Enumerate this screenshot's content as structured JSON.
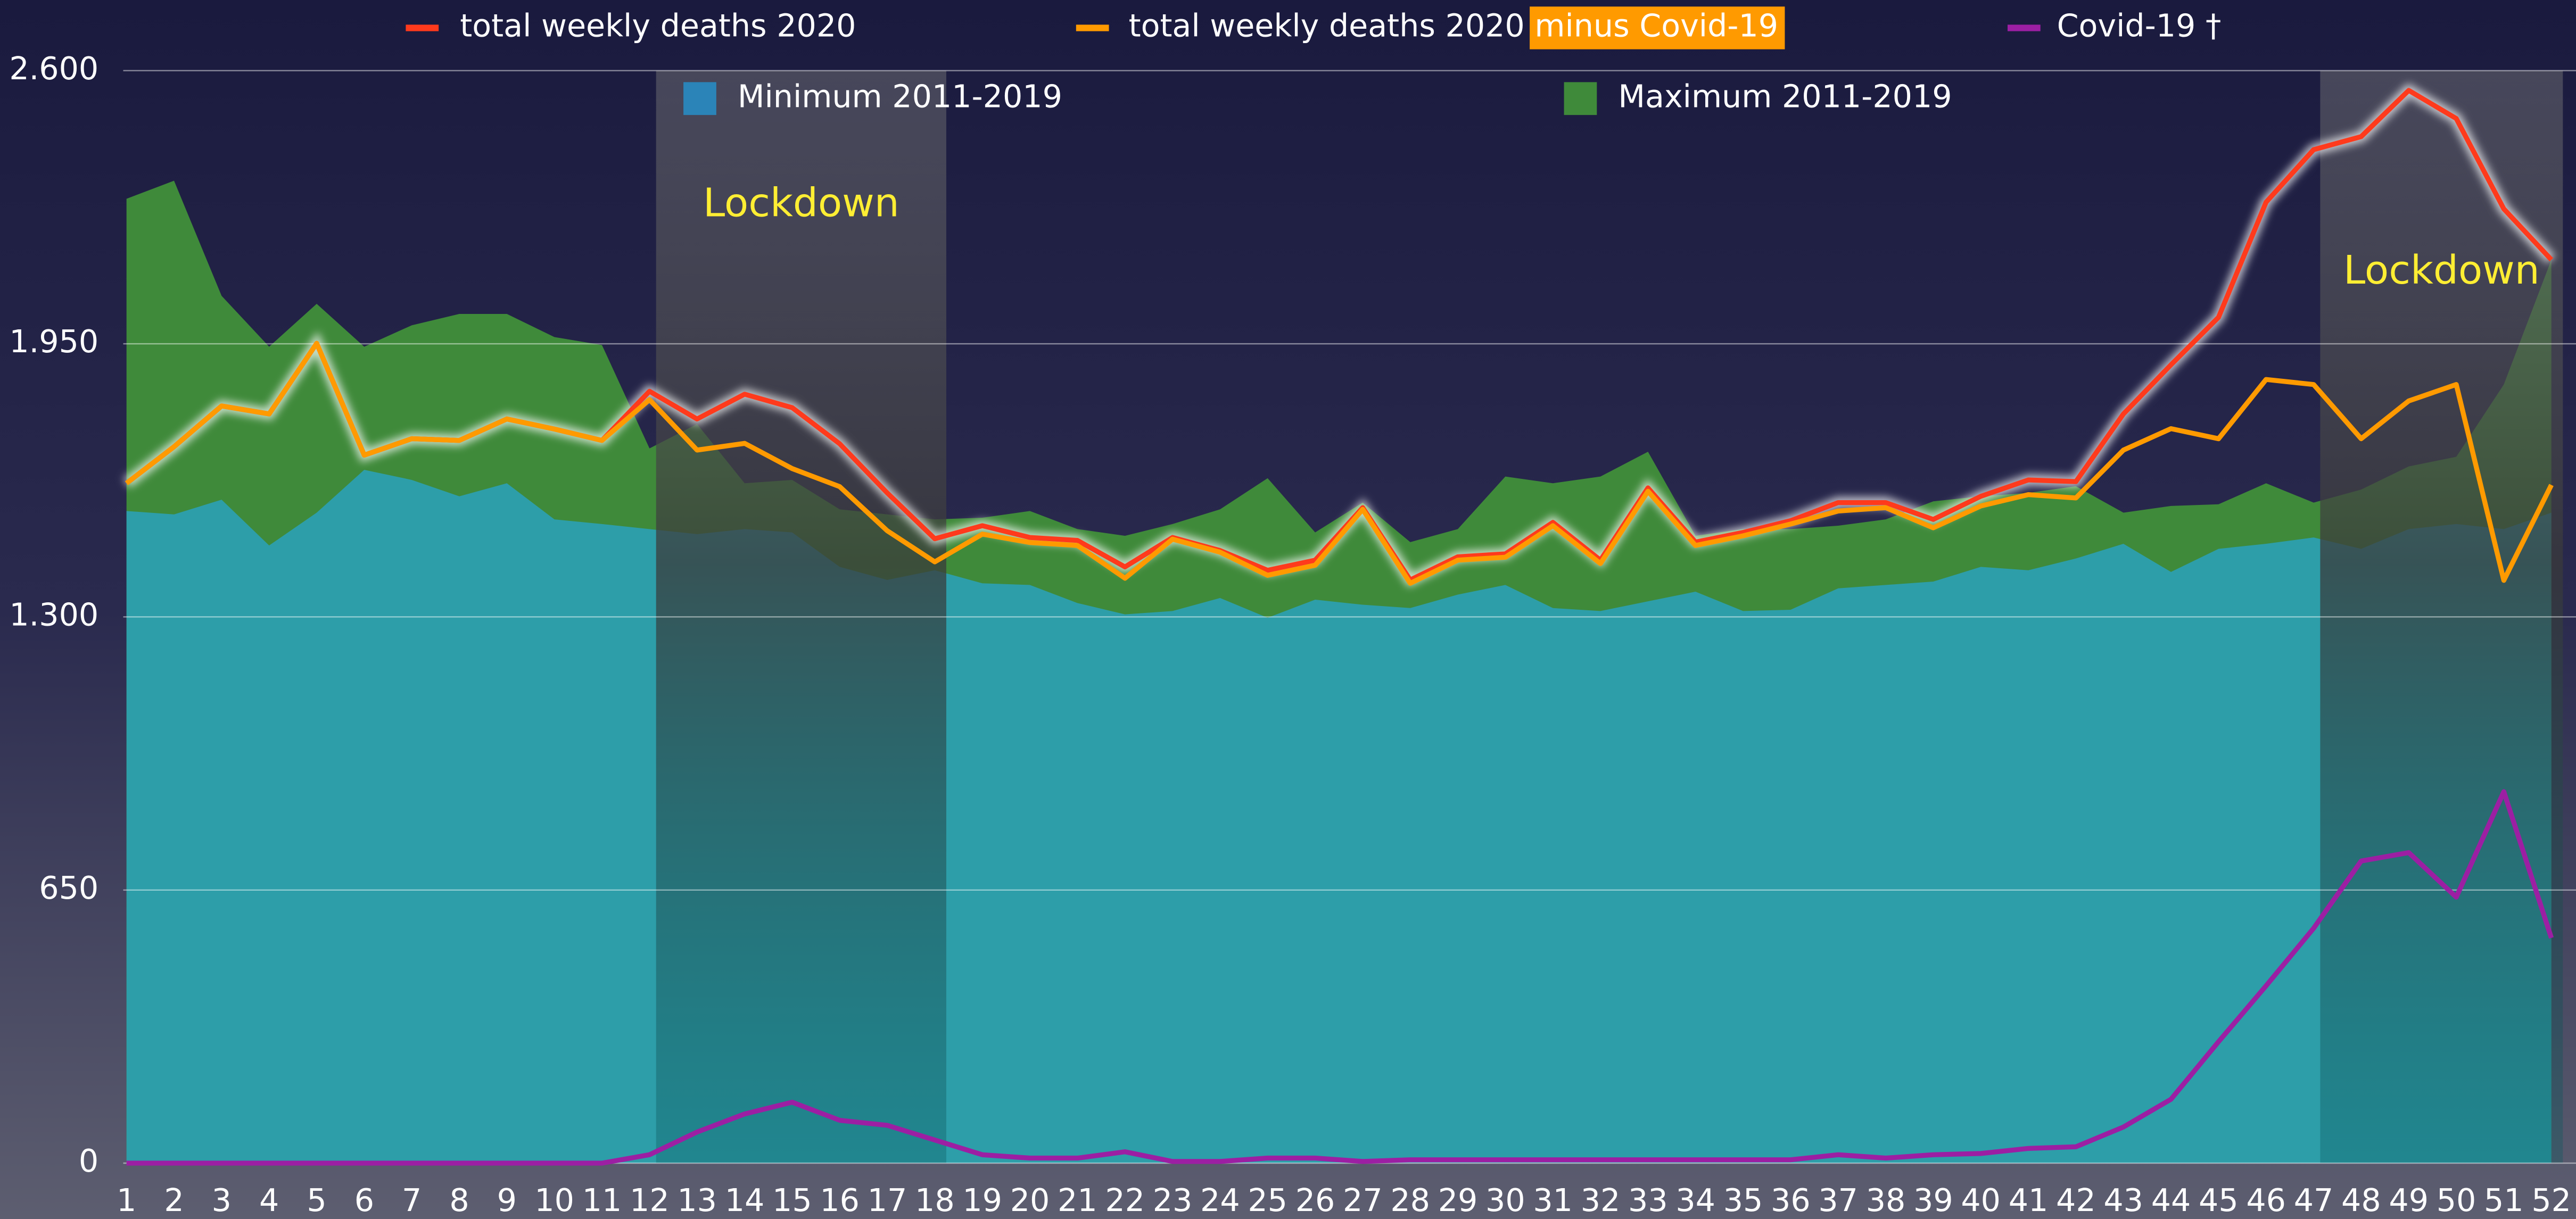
{
  "chart_data": {
    "type": "line",
    "categories": [
      "1",
      "2",
      "3",
      "4",
      "5",
      "6",
      "7",
      "8",
      "9",
      "10",
      "11",
      "12",
      "13",
      "14",
      "15",
      "16",
      "17",
      "18",
      "19",
      "20",
      "21",
      "22",
      "23",
      "24",
      "25",
      "26",
      "27",
      "28",
      "29",
      "30",
      "31",
      "32",
      "33",
      "34",
      "35",
      "36",
      "37",
      "38",
      "39",
      "40",
      "41",
      "42",
      "43",
      "44",
      "45",
      "46",
      "47",
      "48",
      "49",
      "50",
      "51",
      "52"
    ],
    "ylim": [
      0,
      2600
    ],
    "yticks": [
      0,
      650,
      {
        "value": 1300,
        "label": "1.300"
      },
      {
        "value": 1950,
        "label": "1.950"
      },
      {
        "value": 2600,
        "label": "2.600"
      }
    ],
    "grid": true,
    "series": [
      {
        "name": "Minimum 2011-2019",
        "style": "area",
        "color": "#2d9ea9",
        "values": [
          1552,
          1544,
          1579,
          1470,
          1548,
          1650,
          1626,
          1587,
          1618,
          1532,
          1521,
          1509,
          1497,
          1509,
          1501,
          1419,
          1388,
          1411,
          1380,
          1376,
          1333,
          1306,
          1314,
          1345,
          1298,
          1341,
          1329,
          1321,
          1353,
          1376,
          1321,
          1314,
          1337,
          1360,
          1314,
          1317,
          1368,
          1376,
          1384,
          1419,
          1411,
          1439,
          1474,
          1407,
          1462,
          1474,
          1489,
          1462,
          1509,
          1521,
          1509,
          1548
        ]
      },
      {
        "name": "Maximum 2011-2019",
        "style": "area",
        "color": "#3f8a3a",
        "values": [
          2295,
          2338,
          2064,
          1943,
          2045,
          1943,
          1994,
          2021,
          2021,
          1966,
          1947,
          1701,
          1759,
          1618,
          1626,
          1556,
          1544,
          1532,
          1536,
          1552,
          1509,
          1493,
          1521,
          1556,
          1630,
          1501,
          1572,
          1478,
          1509,
          1634,
          1618,
          1634,
          1693,
          1493,
          1509,
          1509,
          1517,
          1532,
          1575,
          1587,
          1595,
          1611,
          1548,
          1564,
          1568,
          1618,
          1572,
          1603,
          1658,
          1681,
          1853,
          2150
        ]
      },
      {
        "name": "total weekly deaths 2020",
        "style": "line",
        "color": "#ff3a1c",
        "values": [
          1618,
          1705,
          1802,
          1783,
          1951,
          1685,
          1724,
          1720,
          1771,
          1747,
          1720,
          1837,
          1771,
          1830,
          1798,
          1712,
          1595,
          1486,
          1517,
          1489,
          1482,
          1419,
          1489,
          1458,
          1411,
          1435,
          1560,
          1388,
          1443,
          1450,
          1525,
          1435,
          1607,
          1478,
          1501,
          1529,
          1572,
          1572,
          1532,
          1587,
          1626,
          1622,
          1783,
          1900,
          2013,
          2287,
          2412,
          2443,
          2553,
          2486,
          2271,
          2150
        ]
      },
      {
        "name": "total weekly deaths 2020 minus Covid-19",
        "style": "line",
        "color": "#ff9a00",
        "values": [
          1618,
          1705,
          1802,
          1783,
          1951,
          1685,
          1724,
          1720,
          1771,
          1747,
          1720,
          1817,
          1697,
          1713,
          1653,
          1610,
          1505,
          1431,
          1497,
          1477,
          1470,
          1392,
          1485,
          1454,
          1399,
          1423,
          1556,
          1380,
          1435,
          1442,
          1517,
          1427,
          1599,
          1470,
          1493,
          1521,
          1552,
          1560,
          1512,
          1564,
          1591,
          1583,
          1697,
          1748,
          1724,
          1865,
          1853,
          1724,
          1814,
          1853,
          1387,
          1614
        ]
      },
      {
        "name": "Covid-19 †",
        "style": "line",
        "color": "#9c1fa3",
        "values": [
          0,
          0,
          0,
          0,
          0,
          0,
          0,
          0,
          0,
          0,
          0,
          20,
          74,
          117,
          145,
          102,
          90,
          55,
          20,
          12,
          12,
          27,
          4,
          4,
          12,
          12,
          4,
          8,
          8,
          8,
          8,
          8,
          8,
          8,
          8,
          8,
          20,
          12,
          20,
          23,
          35,
          39,
          86,
          152,
          289,
          422,
          559,
          719,
          739,
          633,
          884,
          536
        ]
      }
    ],
    "annotations": [
      {
        "label": "Lockdown",
        "x": [
          12,
          18
        ]
      },
      {
        "label": "Lockdown",
        "x": [
          47,
          52
        ]
      }
    ]
  }
}
